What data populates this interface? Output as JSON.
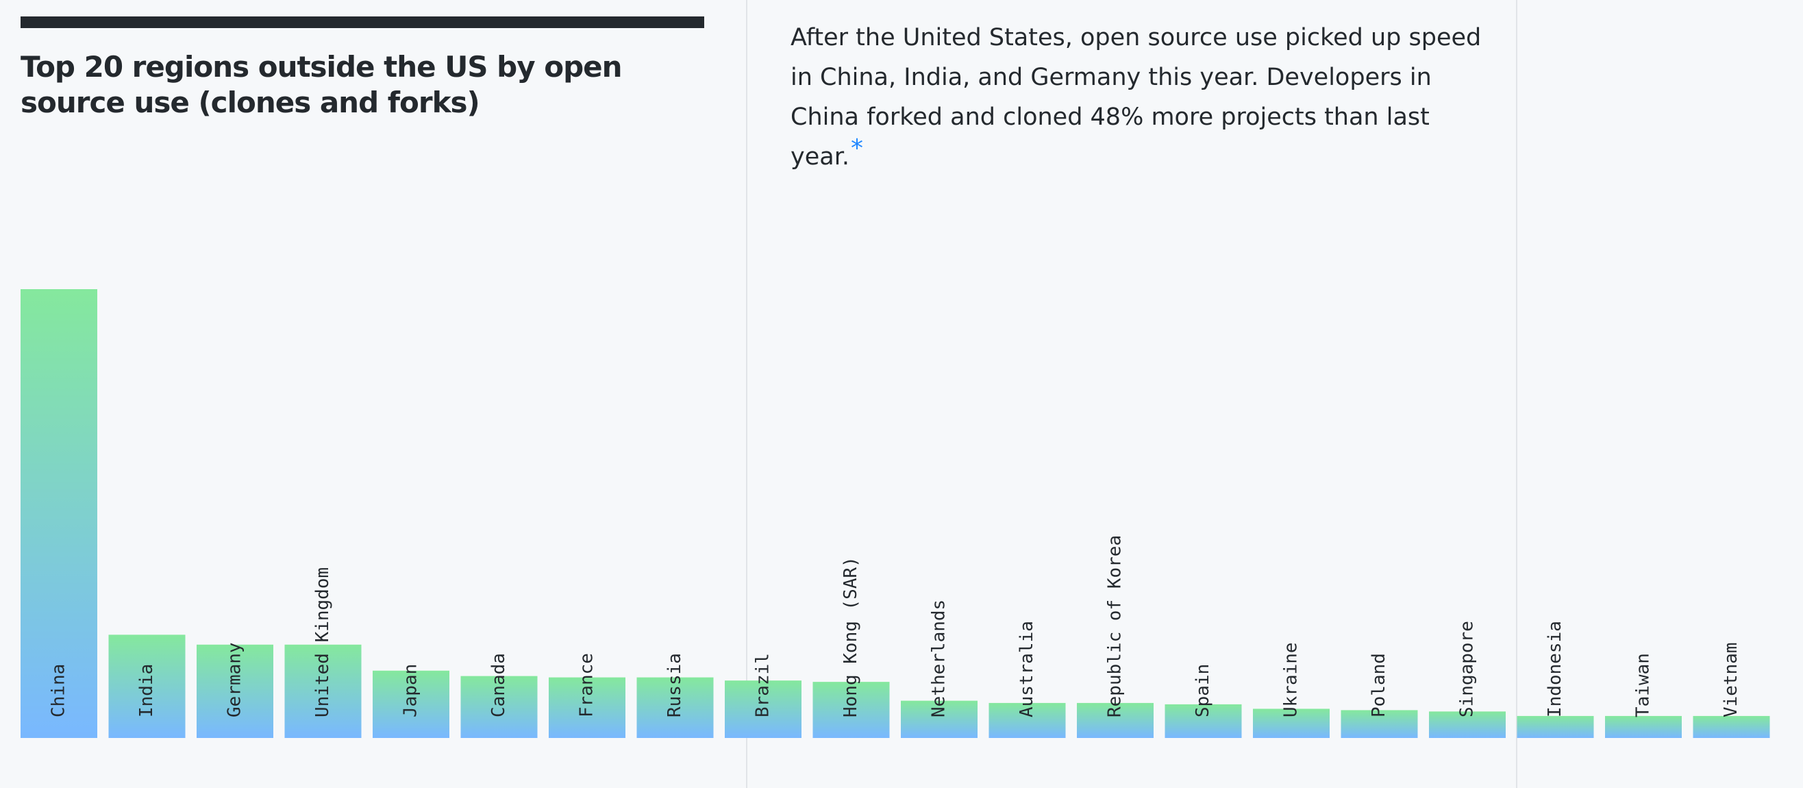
{
  "chart_data": {
    "type": "bar",
    "title": "Top 20 regions outside the US by open source use (clones and forks)",
    "categories": [
      "China",
      "India",
      "Germany",
      "United Kingdom",
      "Japan",
      "Canada",
      "France",
      "Russia",
      "Brazil",
      "Hong Kong (SAR)",
      "Netherlands",
      "Australia",
      "Republic of Korea",
      "Spain",
      "Ukraine",
      "Poland",
      "Singapore",
      "Indonesia",
      "Taiwan",
      "Vietnam"
    ],
    "values": [
      100,
      23,
      20.8,
      20.8,
      15,
      13.8,
      13.5,
      13.5,
      12.8,
      12.5,
      8.3,
      7.8,
      7.8,
      7.5,
      6.5,
      6.2,
      5.9,
      4.9,
      4.9,
      4.9
    ],
    "value_unit": "relative bar height, China = 100 (no axis or values printed)",
    "axes_shown": false,
    "grid": false,
    "bar_gradient": {
      "top": "#85e89d",
      "bottom": "#79b8ff"
    }
  },
  "description": {
    "text": "After the United States, open source use picked up speed in China, India, and Germany this year. Developers in China forked and cloned 48% more projects than last year.",
    "footnote_mark": "*"
  },
  "colors": {
    "background": "#f6f8fa",
    "text": "#24292e",
    "accent": "#2188ff"
  }
}
